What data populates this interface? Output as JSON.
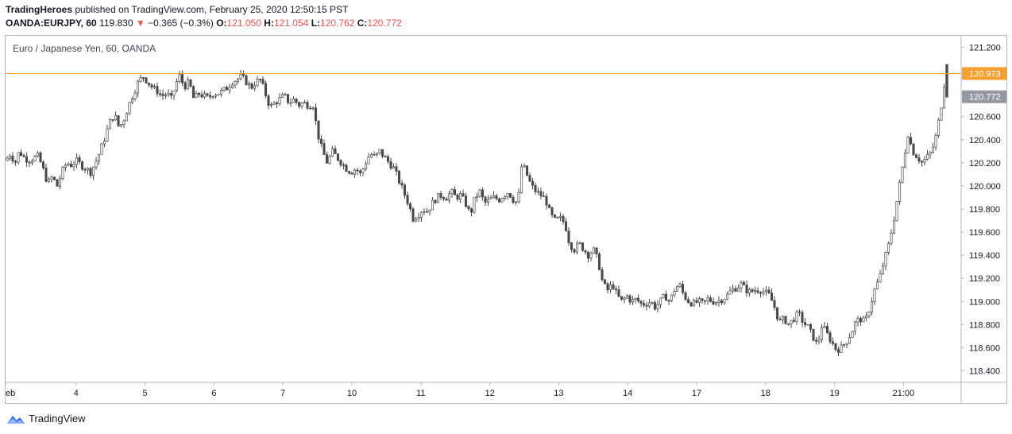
{
  "header": {
    "publisher": "TradingHeroes",
    "published_text": "published on TradingView.com, February 25, 2020 12:50:15 PST",
    "symbol": "OANDA:EURJPY, 60",
    "last": "119.830",
    "change_arrow": "▼",
    "change": "−0.365 (−0.3%)",
    "o_label": "O:",
    "o_value": "121.050",
    "h_label": "H:",
    "h_value": "121.054",
    "l_label": "L:",
    "l_value": "120.762",
    "c_label": "C:",
    "c_value": "120.772"
  },
  "footer": {
    "brand": "TradingView",
    "logo_icon": "tradingview-logo-icon"
  },
  "colors": {
    "candle": "#4a4a4a",
    "hline": "#f7a032",
    "price_badge": "#9598a1",
    "red": "#ef5350"
  },
  "chart_data": {
    "type": "candlestick",
    "title": "Euro / Japanese Yen, 60, OANDA",
    "ylim": [
      118.3,
      121.3
    ],
    "y_ticks": [
      "121.200",
      "121.000",
      "120.800",
      "120.600",
      "120.400",
      "120.200",
      "120.000",
      "119.800",
      "119.600",
      "119.400",
      "119.200",
      "119.000",
      "118.800",
      "118.600",
      "118.400"
    ],
    "x_ticks": [
      "eb",
      "4",
      "5",
      "6",
      "7",
      "10",
      "11",
      "12",
      "13",
      "14",
      "17",
      "18",
      "19",
      "21:00"
    ],
    "horizontal_line": {
      "value": 120.973,
      "label": "120.973"
    },
    "last_price": {
      "value": 120.772,
      "label": "120.772"
    },
    "price_path": [
      [
        0,
        120.22
      ],
      [
        6,
        120.28
      ],
      [
        12,
        120.2
      ],
      [
        17,
        120.3
      ],
      [
        23,
        120.25
      ],
      [
        29,
        120.22
      ],
      [
        35,
        120.24
      ],
      [
        41,
        120.26
      ],
      [
        47,
        120.15
      ],
      [
        53,
        120.02
      ],
      [
        59,
        120.08
      ],
      [
        65,
        120.0
      ],
      [
        71,
        120.12
      ],
      [
        77,
        120.2
      ],
      [
        83,
        120.18
      ],
      [
        89,
        120.22
      ],
      [
        95,
        120.18
      ],
      [
        101,
        120.15
      ],
      [
        107,
        120.12
      ],
      [
        113,
        120.2
      ],
      [
        119,
        120.3
      ],
      [
        125,
        120.42
      ],
      [
        131,
        120.55
      ],
      [
        137,
        120.62
      ],
      [
        143,
        120.5
      ],
      [
        149,
        120.58
      ],
      [
        155,
        120.7
      ],
      [
        161,
        120.8
      ],
      [
        167,
        120.9
      ],
      [
        173,
        120.95
      ],
      [
        179,
        120.9
      ],
      [
        185,
        120.85
      ],
      [
        191,
        120.82
      ],
      [
        197,
        120.78
      ],
      [
        203,
        120.8
      ],
      [
        209,
        120.75
      ],
      [
        214,
        120.88
      ],
      [
        219,
        120.95
      ],
      [
        225,
        120.86
      ],
      [
        231,
        120.9
      ],
      [
        237,
        120.75
      ],
      [
        243,
        120.8
      ],
      [
        249,
        120.78
      ],
      [
        255,
        120.76
      ],
      [
        261,
        120.8
      ],
      [
        267,
        120.8
      ],
      [
        273,
        120.82
      ],
      [
        279,
        120.85
      ],
      [
        285,
        120.9
      ],
      [
        291,
        120.92
      ],
      [
        297,
        120.95
      ],
      [
        303,
        120.9
      ],
      [
        309,
        120.85
      ],
      [
        315,
        120.9
      ],
      [
        321,
        120.92
      ],
      [
        327,
        120.8
      ],
      [
        333,
        120.68
      ],
      [
        339,
        120.72
      ],
      [
        345,
        120.75
      ],
      [
        351,
        120.78
      ],
      [
        357,
        120.72
      ],
      [
        363,
        120.75
      ],
      [
        369,
        120.7
      ],
      [
        375,
        120.72
      ],
      [
        381,
        120.7
      ],
      [
        387,
        120.7
      ],
      [
        393,
        120.45
      ],
      [
        399,
        120.3
      ],
      [
        405,
        120.2
      ],
      [
        411,
        120.3
      ],
      [
        417,
        120.25
      ],
      [
        423,
        120.2
      ],
      [
        429,
        120.15
      ],
      [
        435,
        120.12
      ],
      [
        441,
        120.15
      ],
      [
        447,
        120.1
      ],
      [
        453,
        120.2
      ],
      [
        459,
        120.28
      ],
      [
        465,
        120.25
      ],
      [
        471,
        120.3
      ],
      [
        477,
        120.25
      ],
      [
        483,
        120.2
      ],
      [
        489,
        120.15
      ],
      [
        495,
        120.05
      ],
      [
        501,
        119.95
      ],
      [
        507,
        119.85
      ],
      [
        513,
        119.72
      ],
      [
        519,
        119.75
      ],
      [
        525,
        119.8
      ],
      [
        531,
        119.78
      ],
      [
        537,
        119.85
      ],
      [
        543,
        119.9
      ],
      [
        549,
        119.92
      ],
      [
        555,
        119.9
      ],
      [
        561,
        119.95
      ],
      [
        567,
        119.9
      ],
      [
        573,
        119.92
      ],
      [
        579,
        119.85
      ],
      [
        585,
        119.75
      ],
      [
        591,
        119.9
      ],
      [
        597,
        119.95
      ],
      [
        603,
        119.85
      ],
      [
        609,
        119.88
      ],
      [
        615,
        119.9
      ],
      [
        621,
        119.88
      ],
      [
        627,
        119.92
      ],
      [
        633,
        119.95
      ],
      [
        639,
        119.88
      ],
      [
        645,
        119.85
      ],
      [
        650,
        120.2
      ],
      [
        656,
        120.1
      ],
      [
        662,
        120.0
      ],
      [
        668,
        119.95
      ],
      [
        674,
        119.92
      ],
      [
        680,
        119.88
      ],
      [
        686,
        119.75
      ],
      [
        692,
        119.7
      ],
      [
        698,
        119.72
      ],
      [
        704,
        119.68
      ],
      [
        710,
        119.5
      ],
      [
        716,
        119.45
      ],
      [
        722,
        119.5
      ],
      [
        728,
        119.45
      ],
      [
        734,
        119.4
      ],
      [
        740,
        119.45
      ],
      [
        746,
        119.35
      ],
      [
        752,
        119.15
      ],
      [
        758,
        119.1
      ],
      [
        764,
        119.15
      ],
      [
        770,
        119.05
      ],
      [
        776,
        119.0
      ],
      [
        782,
        119.05
      ],
      [
        788,
        119.0
      ],
      [
        794,
        119.02
      ],
      [
        800,
        118.98
      ],
      [
        806,
        118.98
      ],
      [
        812,
        119.0
      ],
      [
        818,
        118.95
      ],
      [
        824,
        119.0
      ],
      [
        830,
        119.05
      ],
      [
        836,
        119.0
      ],
      [
        842,
        119.1
      ],
      [
        848,
        119.15
      ],
      [
        854,
        119.05
      ],
      [
        860,
        119.0
      ],
      [
        866,
        118.98
      ],
      [
        872,
        119.0
      ],
      [
        878,
        118.98
      ],
      [
        884,
        119.02
      ],
      [
        890,
        119.0
      ],
      [
        896,
        119.0
      ],
      [
        902,
        119.02
      ],
      [
        908,
        119.05
      ],
      [
        914,
        119.1
      ],
      [
        920,
        119.12
      ],
      [
        926,
        119.15
      ],
      [
        932,
        119.1
      ],
      [
        938,
        119.08
      ],
      [
        944,
        119.1
      ],
      [
        950,
        119.1
      ],
      [
        956,
        119.08
      ],
      [
        962,
        119.05
      ],
      [
        968,
        118.95
      ],
      [
        974,
        118.82
      ],
      [
        980,
        118.85
      ],
      [
        986,
        118.8
      ],
      [
        992,
        118.85
      ],
      [
        998,
        118.9
      ],
      [
        1004,
        118.82
      ],
      [
        1010,
        118.78
      ],
      [
        1016,
        118.7
      ],
      [
        1022,
        118.62
      ],
      [
        1028,
        118.8
      ],
      [
        1034,
        118.72
      ],
      [
        1040,
        118.65
      ],
      [
        1046,
        118.58
      ],
      [
        1052,
        118.6
      ],
      [
        1058,
        118.65
      ],
      [
        1064,
        118.72
      ],
      [
        1070,
        118.82
      ],
      [
        1076,
        118.85
      ],
      [
        1082,
        118.82
      ],
      [
        1088,
        118.95
      ],
      [
        1094,
        119.1
      ],
      [
        1100,
        119.2
      ],
      [
        1106,
        119.35
      ],
      [
        1112,
        119.5
      ],
      [
        1118,
        119.7
      ],
      [
        1124,
        119.95
      ],
      [
        1130,
        120.2
      ],
      [
        1136,
        120.45
      ],
      [
        1142,
        120.3
      ],
      [
        1148,
        120.25
      ],
      [
        1154,
        120.2
      ],
      [
        1160,
        120.25
      ],
      [
        1166,
        120.3
      ],
      [
        1172,
        120.45
      ],
      [
        1178,
        120.7
      ],
      [
        1184,
        121.0
      ],
      [
        1190,
        120.78
      ]
    ]
  }
}
